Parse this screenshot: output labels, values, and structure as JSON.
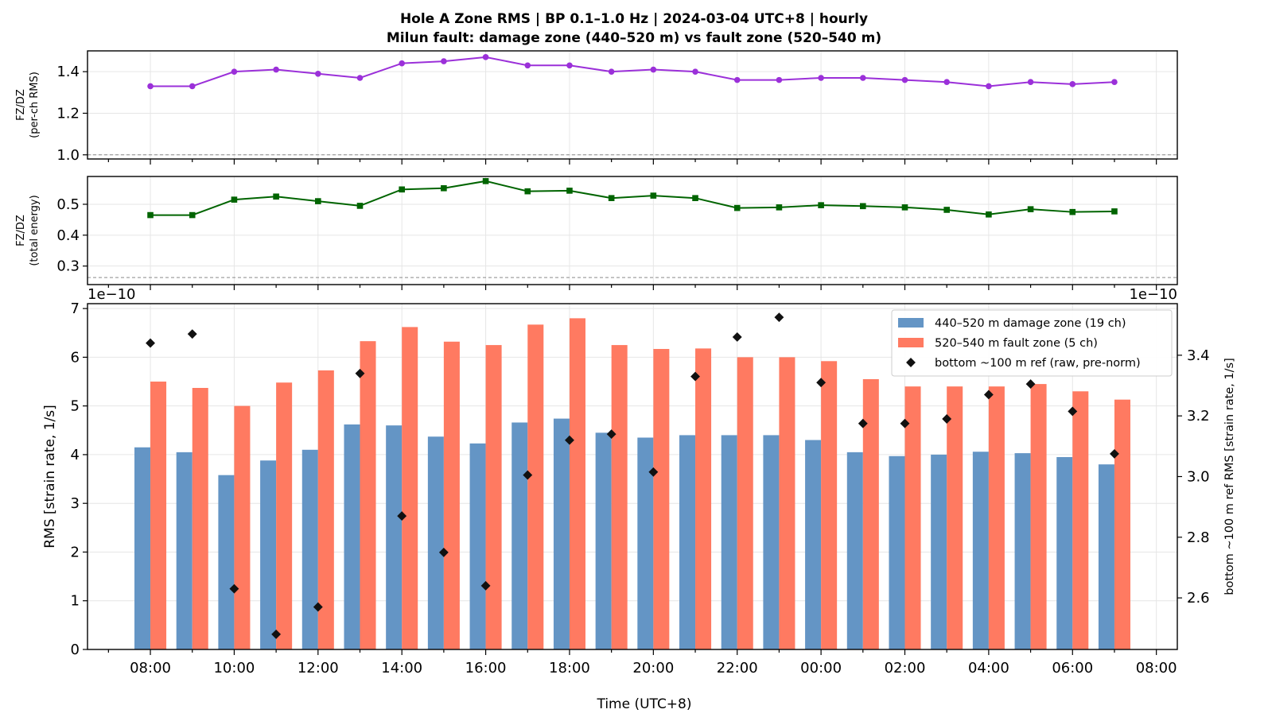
{
  "chart_data": {
    "type": "bar+line",
    "title_line1": "Hole A Zone RMS  |  BP 0.1–1.0 Hz  |  2024-03-04 UTC+8  |  hourly",
    "title_line2": "Milun fault: damage zone (440–520 m) vs fault zone (520–540 m)",
    "xlabel": "Time (UTC+8)",
    "x_tick_labels": [
      "08:00",
      "10:00",
      "12:00",
      "14:00",
      "16:00",
      "18:00",
      "20:00",
      "22:00",
      "00:00",
      "02:00",
      "04:00",
      "06:00",
      "08:00"
    ],
    "x_hours": [
      0,
      1,
      2,
      3,
      4,
      5,
      6,
      7,
      8,
      9,
      10,
      11,
      12,
      13,
      14,
      15,
      16,
      17,
      18,
      19,
      20,
      21,
      22,
      23
    ],
    "x_range": [
      -1.5,
      24.5
    ],
    "panel1": {
      "ylabel_line1": "FZ/DZ",
      "ylabel_line2": "(per-ch RMS)",
      "ylim": [
        0.98,
        1.5
      ],
      "yticks": [
        "1.0",
        "1.2",
        "1.4"
      ],
      "reference_line": 1.0,
      "color": "#9b30d9",
      "values": [
        1.33,
        1.33,
        1.4,
        1.41,
        1.39,
        1.37,
        1.44,
        1.45,
        1.47,
        1.43,
        1.43,
        1.4,
        1.41,
        1.4,
        1.36,
        1.36,
        1.37,
        1.37,
        1.36,
        1.35,
        1.33,
        1.35,
        1.34,
        1.35
      ]
    },
    "panel2": {
      "ylabel_line1": "FZ/DZ",
      "ylabel_line2": "(total energy)",
      "ylim": [
        0.24,
        0.59
      ],
      "yticks": [
        "0.3",
        "0.4",
        "0.5"
      ],
      "reference_line": 0.263,
      "color": "#006400",
      "values": [
        0.465,
        0.465,
        0.515,
        0.525,
        0.51,
        0.495,
        0.548,
        0.552,
        0.575,
        0.542,
        0.544,
        0.52,
        0.528,
        0.52,
        0.488,
        0.49,
        0.497,
        0.494,
        0.49,
        0.482,
        0.467,
        0.484,
        0.475,
        0.477
      ]
    },
    "panel3": {
      "ylabel": "RMS  [strain rate, 1/s]",
      "ylabel_right": "bottom ~100 m ref RMS  [strain rate, 1/s]",
      "scale_label_left": "1e−10",
      "scale_label_right": "1e−10",
      "ylim": [
        0,
        7.1
      ],
      "yticks": [
        "0",
        "1",
        "2",
        "3",
        "4",
        "5",
        "6",
        "7"
      ],
      "ylim_right": [
        2.43,
        3.57
      ],
      "yticks_right": [
        "2.6",
        "2.8",
        "3.0",
        "3.2",
        "3.4"
      ],
      "series": [
        {
          "name": "440–520 m  damage zone (19 ch)",
          "color": "#6495c5",
          "values": [
            4.15,
            4.05,
            3.58,
            3.88,
            4.1,
            4.62,
            4.6,
            4.37,
            4.23,
            4.66,
            4.74,
            4.45,
            4.35,
            4.4,
            4.4,
            4.4,
            4.3,
            4.05,
            3.97,
            4.0,
            4.06,
            4.03,
            3.95,
            3.8
          ]
        },
        {
          "name": "520–540 m  fault zone (5 ch)",
          "color": "#ff7a61",
          "values": [
            5.5,
            5.37,
            5.0,
            5.48,
            5.73,
            6.33,
            6.62,
            6.32,
            6.25,
            6.67,
            6.8,
            6.25,
            6.17,
            6.18,
            6.0,
            6.0,
            5.92,
            5.55,
            5.4,
            5.4,
            5.4,
            5.45,
            5.3,
            5.13
          ]
        },
        {
          "name": "bottom ~100 m ref (raw, pre-norm)",
          "color": "#111111",
          "values": [
            3.44,
            3.47,
            2.63,
            2.48,
            2.57,
            3.34,
            2.87,
            2.75,
            2.64,
            3.005,
            3.12,
            3.14,
            3.015,
            3.33,
            3.46,
            3.525,
            3.31,
            3.175,
            3.175,
            3.19,
            3.27,
            3.305,
            3.215,
            3.075
          ]
        }
      ]
    }
  }
}
